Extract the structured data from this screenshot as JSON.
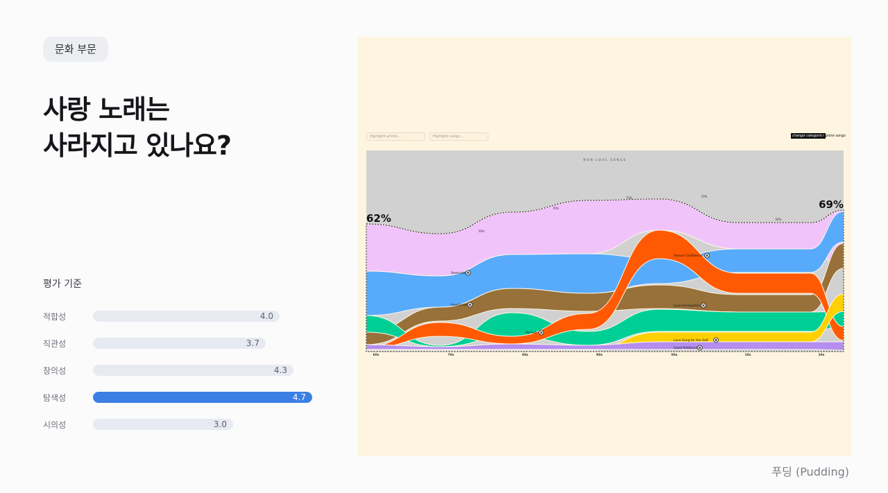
{
  "tag": "문화 부문",
  "title": {
    "line1": "사랑 노래는",
    "line2": "사라지고 있나요?"
  },
  "criteria": {
    "heading": "평가 기준",
    "items": [
      {
        "label": "적합성",
        "value": "4.0",
        "score": 4.0,
        "highlight": false
      },
      {
        "label": "직관성",
        "value": "3.7",
        "score": 3.7,
        "highlight": false
      },
      {
        "label": "창의성",
        "value": "4.3",
        "score": 4.3,
        "highlight": false
      },
      {
        "label": "탐색성",
        "value": "4.7",
        "score": 4.7,
        "highlight": true
      },
      {
        "label": "시의성",
        "value": "3.0",
        "score": 3.0,
        "highlight": false
      }
    ]
  },
  "source": "푸딩 (Pudding)",
  "viz": {
    "search_artists_placeholder": "Highlight artists...",
    "search_songs_placeholder": "Highlight songs...",
    "change_categories_label": "change categories",
    "explore_songs_label": "explore songs",
    "top_label": "NON-LOVE SONGS",
    "start_pct": "62%",
    "end_pct": "69%",
    "decade_pcts": [
      "",
      "59%",
      "70%",
      "73%",
      "70%",
      "56%",
      ""
    ],
    "decades": [
      "60s",
      "70s",
      "80s",
      "90s",
      "00s",
      "10s",
      "20s"
    ],
    "song_callouts": [
      "Serenade",
      "Heartache",
      "Pursuit",
      "Sexual Confidence",
      "Love Unrequited",
      "Love Song for the Self",
      "Good Riddance"
    ]
  },
  "colors": {
    "accent_bar": "#3b7fe4",
    "bar_track": "#e7eaf1",
    "panel_bg": "#fdf5df",
    "non_love": "#d1d1d1",
    "pink": "#f0c4fa",
    "blue": "#58abfa",
    "brown": "#977139",
    "green": "#00cf95",
    "orange": "#ff5a03",
    "yellow": "#fdd000",
    "purple": "#b58ef0"
  },
  "chart_data": {
    "type": "area",
    "title": "NON-LOVE SONGS",
    "x": [
      "60s",
      "70s",
      "80s",
      "90s",
      "00s",
      "10s",
      "20s"
    ],
    "love_song_share_pct": {
      "60s": 62,
      "20s": 69
    },
    "decade_labels": [
      "59%",
      "70%",
      "73%",
      "70%",
      "56%"
    ],
    "series": [
      "Serenade",
      "Heartache",
      "Pursuit",
      "Sexual Confidence",
      "Love Unrequited",
      "Love Song for the Self",
      "Good Riddance"
    ]
  }
}
